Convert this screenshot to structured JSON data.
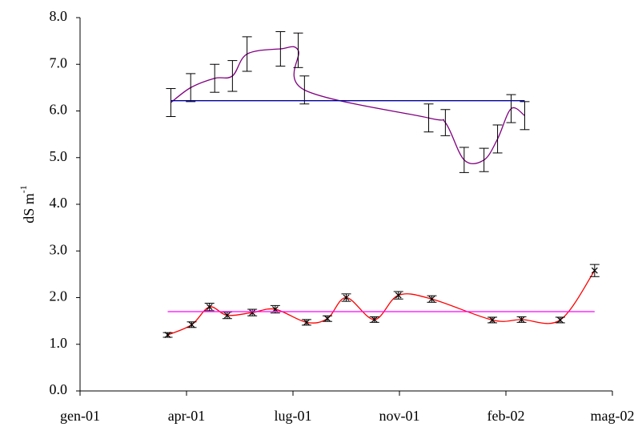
{
  "chart_data": {
    "type": "line",
    "ylabel": "dS m",
    "ylabel_superscript": "-1",
    "xlim": [
      "2001-01-01",
      "2002-05-26"
    ],
    "xticks": [
      {
        "value": "2001-01-01",
        "label": "gen-01"
      },
      {
        "value": "2001-04-13",
        "label": "apr-01"
      },
      {
        "value": "2001-07-24",
        "label": "lug-01"
      },
      {
        "value": "2001-11-03",
        "label": "nov-01"
      },
      {
        "value": "2002-02-13",
        "label": "feb-02"
      },
      {
        "value": "2002-05-26",
        "label": "mag-02"
      }
    ],
    "ylim": [
      0,
      8
    ],
    "yticks": [
      {
        "value": 0,
        "label": "0.0"
      },
      {
        "value": 1,
        "label": "1.0"
      },
      {
        "value": 2,
        "label": "2.0"
      },
      {
        "value": 3,
        "label": "3.0"
      },
      {
        "value": 4,
        "label": "4.0"
      },
      {
        "value": 5,
        "label": "5.0"
      },
      {
        "value": 6,
        "label": "6.0"
      },
      {
        "value": 7,
        "label": "7.0"
      },
      {
        "value": 8,
        "label": "8.0"
      }
    ],
    "series": [
      {
        "color": "#800080",
        "smooth": true,
        "marker": false,
        "x": [
          "2001-03-29",
          "2001-04-17",
          "2001-05-10",
          "2001-05-27",
          "2001-06-10",
          "2001-07-12",
          "2001-07-29",
          "2001-08-04",
          "2001-12-01",
          "2001-12-17",
          "2002-01-04",
          "2002-01-23",
          "2002-02-05",
          "2002-02-18",
          "2002-03-03"
        ],
        "values": [
          6.18,
          6.5,
          6.7,
          6.75,
          7.22,
          7.33,
          7.3,
          6.45,
          5.85,
          5.75,
          4.95,
          4.95,
          5.4,
          6.05,
          5.9
        ],
        "errors": [
          0.3,
          0.3,
          0.3,
          0.33,
          0.37,
          0.37,
          0.37,
          0.3,
          0.3,
          0.28,
          0.27,
          0.25,
          0.3,
          0.3,
          0.3
        ]
      },
      {
        "color": "#000099",
        "smooth": false,
        "marker": false,
        "x": [
          "2001-03-29",
          "2002-03-03"
        ],
        "values": [
          6.22,
          6.22
        ]
      },
      {
        "color": "#ff0000",
        "smooth": true,
        "marker": true,
        "x": [
          "2001-03-26",
          "2001-04-18",
          "2001-05-05",
          "2001-05-22",
          "2001-06-15",
          "2001-07-07",
          "2001-08-06",
          "2001-08-26",
          "2001-09-13",
          "2001-10-10",
          "2001-11-02",
          "2001-12-04",
          "2002-01-31",
          "2002-02-28",
          "2002-04-06",
          "2002-05-09"
        ],
        "values": [
          1.2,
          1.42,
          1.8,
          1.62,
          1.68,
          1.75,
          1.47,
          1.55,
          2.0,
          1.53,
          2.05,
          1.97,
          1.52,
          1.53,
          1.52,
          2.58
        ],
        "errors": [
          0.05,
          0.06,
          0.08,
          0.07,
          0.07,
          0.08,
          0.06,
          0.06,
          0.08,
          0.06,
          0.08,
          0.07,
          0.06,
          0.06,
          0.06,
          0.13
        ]
      },
      {
        "color": "#ff00ff",
        "smooth": false,
        "marker": false,
        "x": [
          "2001-03-26",
          "2002-05-09"
        ],
        "values": [
          1.7,
          1.7
        ]
      }
    ]
  }
}
